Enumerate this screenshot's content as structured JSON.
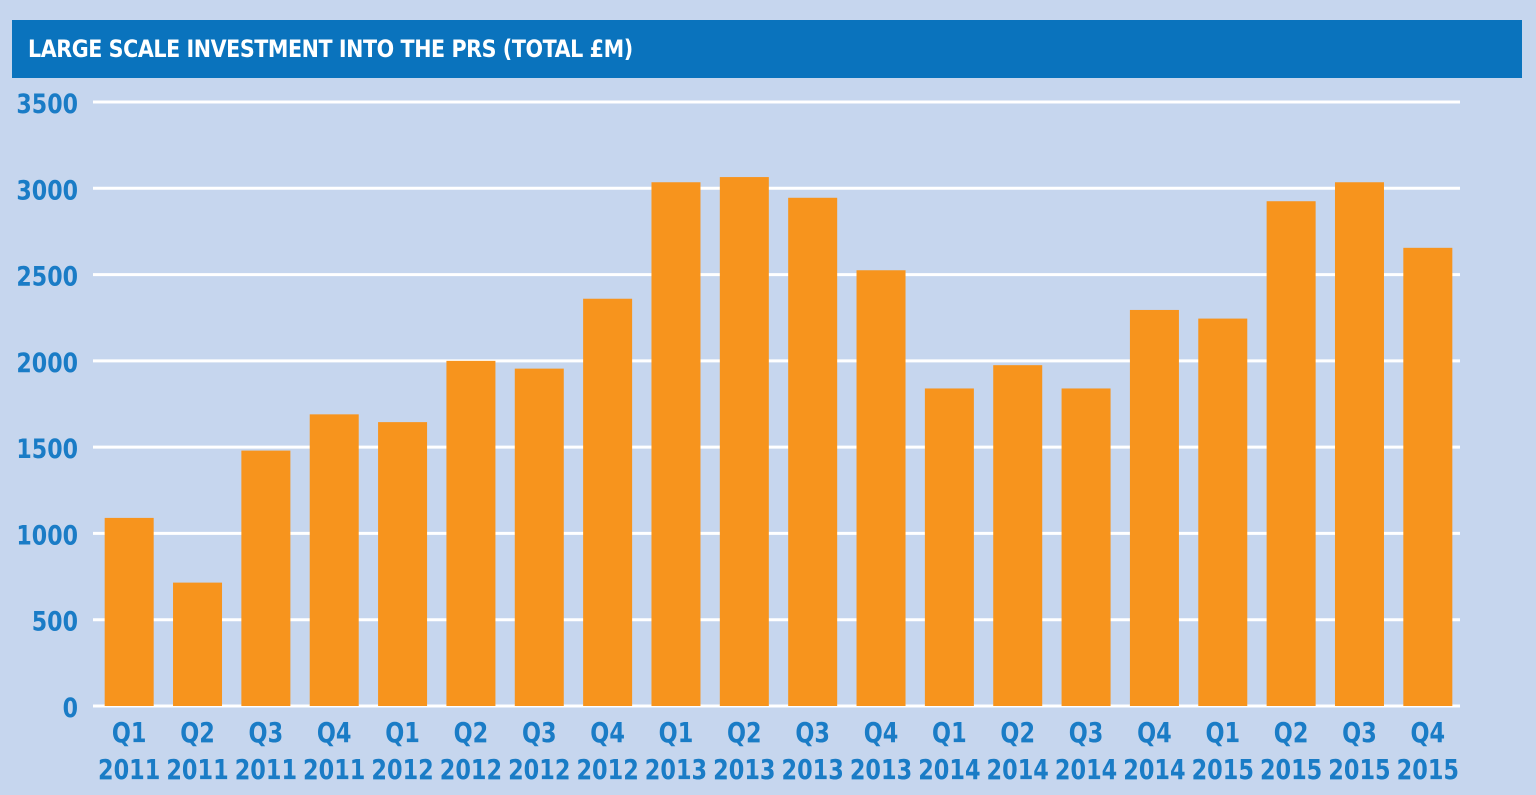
{
  "colors": {
    "background": "#c6d6ee",
    "title_bar": "#0a73bd",
    "bar": "#f7941d",
    "axis_text": "#1a7cc6",
    "gridline": "#ffffff"
  },
  "chart_data": {
    "type": "bar",
    "title": "LARGE SCALE INVESTMENT INTO THE PRS (TOTAL £M)",
    "xlabel": "",
    "ylabel": "",
    "ylim": [
      0,
      3500
    ],
    "yticks": [
      "0",
      "500",
      "1000",
      "1500",
      "2000",
      "2500",
      "3000",
      "3500"
    ],
    "grid": true,
    "categories": [
      [
        "Q1",
        "2011"
      ],
      [
        "Q2",
        "2011"
      ],
      [
        "Q3",
        "2011"
      ],
      [
        "Q4",
        "2011"
      ],
      [
        "Q1",
        "2012"
      ],
      [
        "Q2",
        "2012"
      ],
      [
        "Q3",
        "2012"
      ],
      [
        "Q4",
        "2012"
      ],
      [
        "Q1",
        "2013"
      ],
      [
        "Q2",
        "2013"
      ],
      [
        "Q3",
        "2013"
      ],
      [
        "Q4",
        "2013"
      ],
      [
        "Q1",
        "2014"
      ],
      [
        "Q2",
        "2014"
      ],
      [
        "Q3",
        "2014"
      ],
      [
        "Q4",
        "2014"
      ],
      [
        "Q1",
        "2015"
      ],
      [
        "Q2",
        "2015"
      ],
      [
        "Q3",
        "2015"
      ],
      [
        "Q4",
        "2015"
      ]
    ],
    "values": [
      1090,
      715,
      1480,
      1690,
      1645,
      2000,
      1955,
      2360,
      3035,
      3065,
      2945,
      2525,
      1840,
      1975,
      1840,
      2295,
      2245,
      2925,
      3035,
      2655
    ]
  }
}
